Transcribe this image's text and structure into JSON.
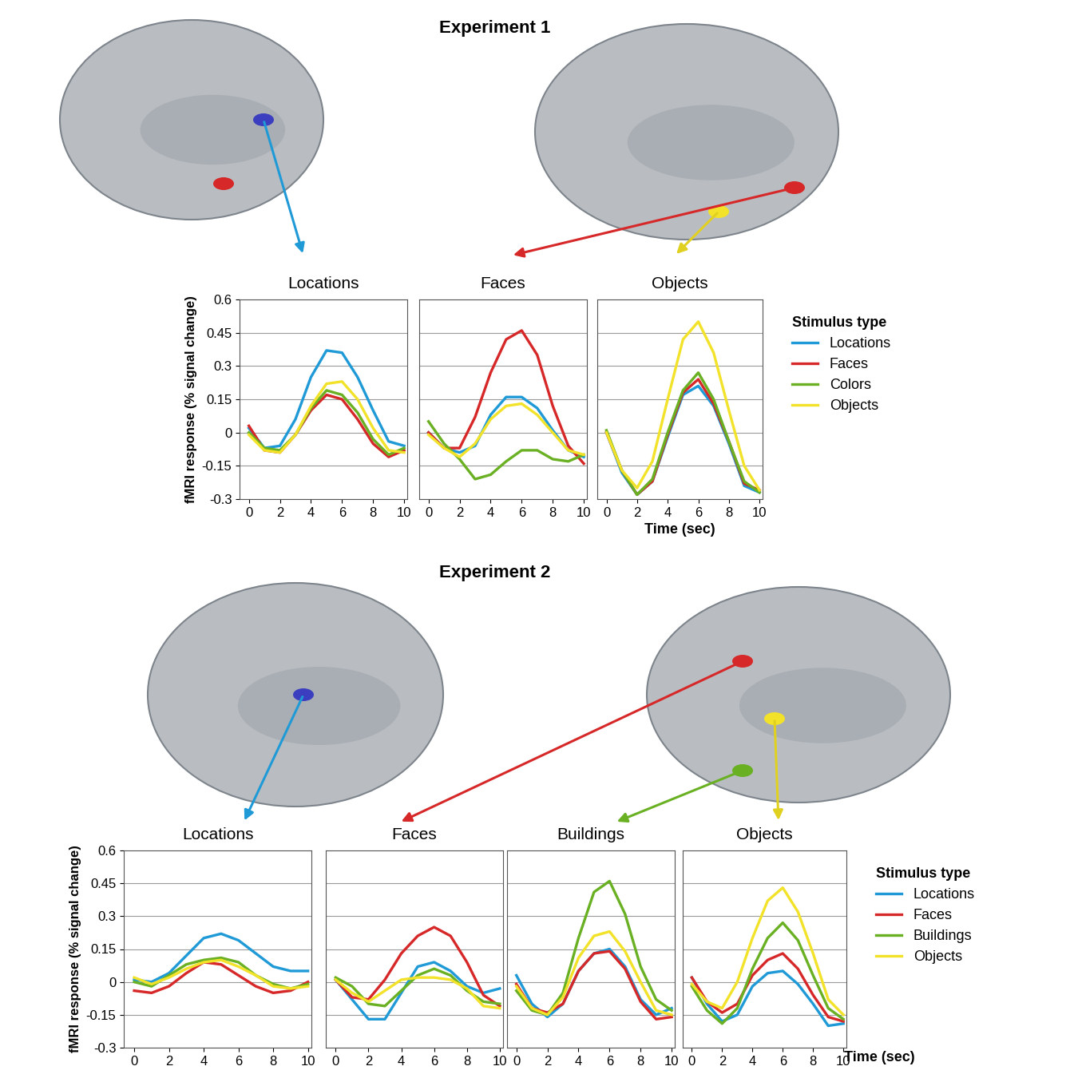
{
  "chart_data": [
    {
      "type": "line",
      "group": "Experiment 1",
      "title": "Locations",
      "y_label": "fMRI response (% signal change)",
      "x": [
        0,
        1,
        2,
        3,
        4,
        5,
        6,
        7,
        8,
        9,
        10
      ],
      "series": [
        {
          "name": "Locations",
          "color": "#1f9ad6",
          "values": [
            0.02,
            -0.07,
            -0.06,
            0.06,
            0.25,
            0.37,
            0.36,
            0.25,
            0.1,
            -0.04,
            -0.06
          ]
        },
        {
          "name": "Faces",
          "color": "#d62828",
          "values": [
            0.03,
            -0.08,
            -0.09,
            -0.01,
            0.1,
            0.17,
            0.15,
            0.06,
            -0.05,
            -0.11,
            -0.08
          ]
        },
        {
          "name": "Colors",
          "color": "#6ab023",
          "values": [
            0.0,
            -0.07,
            -0.08,
            -0.01,
            0.11,
            0.19,
            0.17,
            0.09,
            -0.03,
            -0.1,
            -0.07
          ]
        },
        {
          "name": "Objects",
          "color": "#f2e22a",
          "values": [
            -0.01,
            -0.08,
            -0.09,
            -0.01,
            0.12,
            0.22,
            0.23,
            0.15,
            0.02,
            -0.08,
            -0.09
          ]
        }
      ],
      "xlim": [
        -0.6,
        10.2
      ],
      "ylim": [
        -0.3,
        0.6
      ],
      "xticks": [
        0,
        2,
        4,
        6,
        8,
        10
      ],
      "yticks": [
        -0.3,
        -0.15,
        0,
        0.15,
        0.3,
        0.45,
        0.6
      ],
      "grid": true
    },
    {
      "type": "line",
      "group": "Experiment 1",
      "title": "Faces",
      "x": [
        0,
        1,
        2,
        3,
        4,
        5,
        6,
        7,
        8,
        9,
        10
      ],
      "series": [
        {
          "name": "Locations",
          "color": "#1f9ad6",
          "values": [
            0.0,
            -0.07,
            -0.09,
            -0.06,
            0.08,
            0.16,
            0.16,
            0.11,
            0.01,
            -0.08,
            -0.11
          ]
        },
        {
          "name": "Faces",
          "color": "#d62828",
          "values": [
            0.0,
            -0.07,
            -0.07,
            0.07,
            0.27,
            0.42,
            0.46,
            0.35,
            0.12,
            -0.06,
            -0.14
          ]
        },
        {
          "name": "Colors",
          "color": "#6ab023",
          "values": [
            0.05,
            -0.05,
            -0.12,
            -0.21,
            -0.19,
            -0.13,
            -0.08,
            -0.08,
            -0.12,
            -0.13,
            -0.1
          ]
        },
        {
          "name": "Objects",
          "color": "#f2e22a",
          "values": [
            -0.01,
            -0.07,
            -0.11,
            -0.05,
            0.06,
            0.12,
            0.13,
            0.08,
            0.0,
            -0.08,
            -0.1
          ]
        }
      ],
      "xlim": [
        -0.6,
        10.2
      ],
      "ylim": [
        -0.3,
        0.6
      ],
      "xticks": [
        0,
        2,
        4,
        6,
        8,
        10
      ],
      "yticks": [
        -0.3,
        -0.15,
        0,
        0.15,
        0.3,
        0.45,
        0.6
      ],
      "grid": true,
      "tick_labels": "x"
    },
    {
      "type": "line",
      "group": "Experiment 1",
      "title": "Objects",
      "x_label": "Time (sec)",
      "x": [
        0,
        1,
        2,
        3,
        4,
        5,
        6,
        7,
        8,
        9,
        10
      ],
      "series": [
        {
          "name": "Locations",
          "color": "#1f9ad6",
          "values": [
            0.0,
            -0.18,
            -0.28,
            -0.22,
            -0.02,
            0.17,
            0.21,
            0.12,
            -0.05,
            -0.24,
            -0.27
          ]
        },
        {
          "name": "Faces",
          "color": "#d62828",
          "values": [
            0.0,
            -0.17,
            -0.28,
            -0.22,
            -0.01,
            0.18,
            0.24,
            0.13,
            -0.04,
            -0.23,
            -0.26
          ]
        },
        {
          "name": "Colors",
          "color": "#6ab023",
          "values": [
            0.01,
            -0.17,
            -0.28,
            -0.21,
            0.0,
            0.19,
            0.27,
            0.15,
            -0.04,
            -0.22,
            -0.27
          ]
        },
        {
          "name": "Objects",
          "color": "#f2e22a",
          "values": [
            0.0,
            -0.17,
            -0.25,
            -0.13,
            0.15,
            0.42,
            0.5,
            0.36,
            0.1,
            -0.15,
            -0.26
          ]
        }
      ],
      "xlim": [
        -0.6,
        10.2
      ],
      "ylim": [
        -0.3,
        0.6
      ],
      "xticks": [
        0,
        2,
        4,
        6,
        8,
        10
      ],
      "yticks": [
        -0.3,
        -0.15,
        0,
        0.15,
        0.3,
        0.45,
        0.6
      ],
      "grid": true,
      "tick_labels": "x",
      "legend": "upper left",
      "legend_title": "Stimulus type"
    },
    {
      "type": "line",
      "group": "Experiment 2",
      "title": "Locations",
      "y_label": "fMRI response (% signal change)",
      "x": [
        0,
        1,
        2,
        3,
        4,
        5,
        6,
        7,
        8,
        9,
        10
      ],
      "series": [
        {
          "name": "Locations",
          "color": "#1f9ad6",
          "values": [
            0.01,
            0.0,
            0.04,
            0.12,
            0.2,
            0.22,
            0.19,
            0.13,
            0.07,
            0.05,
            0.05
          ]
        },
        {
          "name": "Faces",
          "color": "#d62828",
          "values": [
            -0.04,
            -0.05,
            -0.02,
            0.04,
            0.09,
            0.08,
            0.03,
            -0.02,
            -0.05,
            -0.04,
            0.0
          ]
        },
        {
          "name": "Buildings",
          "color": "#6ab023",
          "values": [
            0.0,
            -0.02,
            0.03,
            0.08,
            0.1,
            0.11,
            0.09,
            0.03,
            -0.01,
            -0.03,
            -0.01
          ]
        },
        {
          "name": "Objects",
          "color": "#f2e22a",
          "values": [
            0.02,
            -0.01,
            0.02,
            0.06,
            0.09,
            0.1,
            0.07,
            0.03,
            -0.02,
            -0.03,
            -0.02
          ]
        }
      ],
      "xlim": [
        -0.6,
        10.2
      ],
      "ylim": [
        -0.3,
        0.6
      ],
      "xticks": [
        0,
        2,
        4,
        6,
        8,
        10
      ],
      "yticks": [
        -0.3,
        -0.15,
        0,
        0.15,
        0.3,
        0.45,
        0.6
      ],
      "grid": true
    },
    {
      "type": "line",
      "group": "Experiment 2",
      "title": "Faces",
      "x": [
        0,
        1,
        2,
        3,
        4,
        5,
        6,
        7,
        8,
        9,
        10
      ],
      "series": [
        {
          "name": "Locations",
          "color": "#1f9ad6",
          "values": [
            0.01,
            -0.08,
            -0.17,
            -0.17,
            -0.05,
            0.07,
            0.09,
            0.05,
            -0.02,
            -0.05,
            -0.03
          ]
        },
        {
          "name": "Faces",
          "color": "#d62828",
          "values": [
            0.01,
            -0.07,
            -0.08,
            0.01,
            0.13,
            0.21,
            0.25,
            0.21,
            0.09,
            -0.06,
            -0.11
          ]
        },
        {
          "name": "Buildings",
          "color": "#6ab023",
          "values": [
            0.02,
            -0.02,
            -0.1,
            -0.11,
            -0.04,
            0.03,
            0.06,
            0.03,
            -0.04,
            -0.09,
            -0.1
          ]
        },
        {
          "name": "Objects",
          "color": "#f2e22a",
          "values": [
            0.01,
            -0.05,
            -0.09,
            -0.04,
            0.01,
            0.02,
            0.02,
            0.01,
            -0.03,
            -0.11,
            -0.12
          ]
        }
      ],
      "xlim": [
        -0.6,
        10.2
      ],
      "ylim": [
        -0.3,
        0.6
      ],
      "xticks": [
        0,
        2,
        4,
        6,
        8,
        10
      ],
      "yticks": [
        -0.3,
        -0.15,
        0,
        0.15,
        0.3,
        0.45,
        0.6
      ],
      "grid": true,
      "tick_labels": "x"
    },
    {
      "type": "line",
      "group": "Experiment 2",
      "title": "Buildings",
      "x": [
        0,
        1,
        2,
        3,
        4,
        5,
        6,
        7,
        8,
        9,
        10
      ],
      "series": [
        {
          "name": "Locations",
          "color": "#1f9ad6",
          "values": [
            0.03,
            -0.1,
            -0.16,
            -0.1,
            0.05,
            0.13,
            0.15,
            0.07,
            -0.08,
            -0.15,
            -0.12
          ]
        },
        {
          "name": "Faces",
          "color": "#d62828",
          "values": [
            -0.01,
            -0.12,
            -0.14,
            -0.1,
            0.05,
            0.13,
            0.14,
            0.06,
            -0.09,
            -0.17,
            -0.16
          ]
        },
        {
          "name": "Buildings",
          "color": "#6ab023",
          "values": [
            -0.04,
            -0.13,
            -0.15,
            -0.05,
            0.2,
            0.41,
            0.46,
            0.31,
            0.07,
            -0.08,
            -0.13
          ]
        },
        {
          "name": "Objects",
          "color": "#f2e22a",
          "values": [
            -0.02,
            -0.12,
            -0.15,
            -0.07,
            0.11,
            0.21,
            0.23,
            0.14,
            0.0,
            -0.13,
            -0.15
          ]
        }
      ],
      "xlim": [
        -0.6,
        10.2
      ],
      "ylim": [
        -0.3,
        0.6
      ],
      "xticks": [
        0,
        2,
        4,
        6,
        8,
        10
      ],
      "yticks": [
        -0.3,
        -0.15,
        0,
        0.15,
        0.3,
        0.45,
        0.6
      ],
      "grid": true,
      "tick_labels": "x"
    },
    {
      "type": "line",
      "group": "Experiment 2",
      "title": "Objects",
      "x_label": "Time (sec)",
      "x": [
        0,
        1,
        2,
        3,
        4,
        5,
        6,
        7,
        8,
        9,
        10
      ],
      "series": [
        {
          "name": "Locations",
          "color": "#1f9ad6",
          "values": [
            0.02,
            -0.1,
            -0.18,
            -0.15,
            -0.02,
            0.04,
            0.05,
            -0.01,
            -0.1,
            -0.2,
            -0.19
          ]
        },
        {
          "name": "Faces",
          "color": "#d62828",
          "values": [
            0.02,
            -0.09,
            -0.14,
            -0.1,
            0.03,
            0.1,
            0.13,
            0.06,
            -0.06,
            -0.16,
            -0.18
          ]
        },
        {
          "name": "Buildings",
          "color": "#6ab023",
          "values": [
            -0.02,
            -0.13,
            -0.19,
            -0.12,
            0.06,
            0.2,
            0.27,
            0.19,
            0.03,
            -0.12,
            -0.17
          ]
        },
        {
          "name": "Objects",
          "color": "#f2e22a",
          "values": [
            -0.01,
            -0.09,
            -0.12,
            0.0,
            0.2,
            0.37,
            0.43,
            0.32,
            0.13,
            -0.08,
            -0.15
          ]
        }
      ],
      "xlim": [
        -0.6,
        10.2
      ],
      "ylim": [
        -0.3,
        0.6
      ],
      "xticks": [
        0,
        2,
        4,
        6,
        8,
        10
      ],
      "yticks": [
        -0.3,
        -0.15,
        0,
        0.15,
        0.3,
        0.45,
        0.6
      ],
      "grid": true,
      "tick_labels": "x",
      "legend": "upper left",
      "legend_title": "Stimulus type"
    }
  ]
}
